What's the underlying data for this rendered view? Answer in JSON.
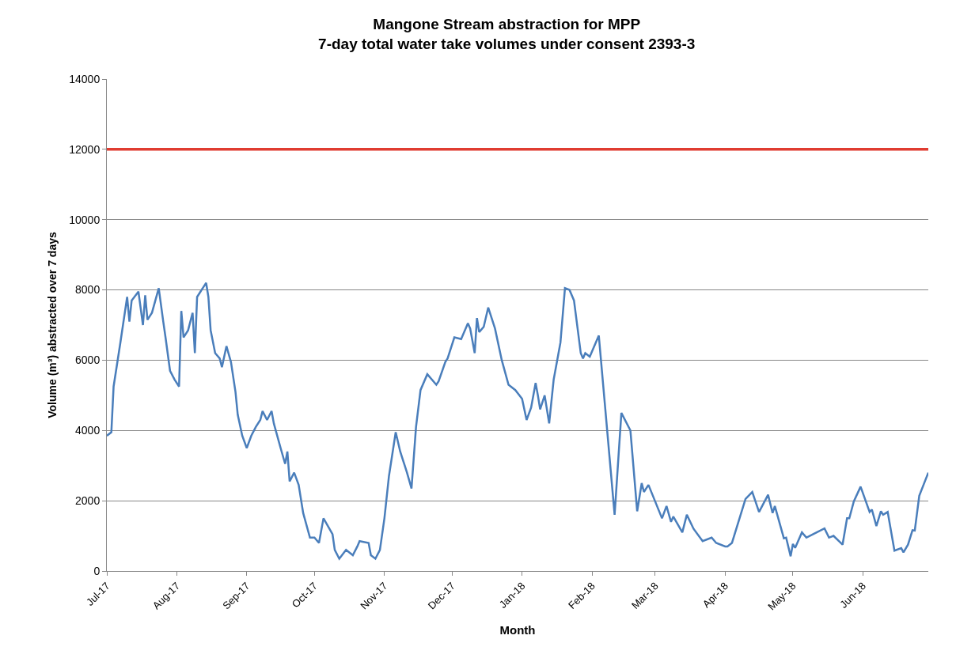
{
  "chart_data": {
    "type": "line",
    "title": "Mangone Stream abstraction for MPP",
    "subtitle": "7-day total water take volumes under consent 2393-3",
    "xlabel": "Month",
    "ylabel": "Volume (m³) abstracted over 7 days",
    "x": [
      "2017-07-01",
      "2017-07-03",
      "2017-07-04",
      "2017-07-07",
      "2017-07-10",
      "2017-07-11",
      "2017-07-12",
      "2017-07-15",
      "2017-07-17",
      "2017-07-18",
      "2017-07-19",
      "2017-07-21",
      "2017-07-24",
      "2017-07-26",
      "2017-07-27",
      "2017-07-29",
      "2017-07-31",
      "2017-08-02",
      "2017-08-03",
      "2017-08-04",
      "2017-08-06",
      "2017-08-08",
      "2017-08-09",
      "2017-08-10",
      "2017-08-11",
      "2017-08-13",
      "2017-08-14",
      "2017-08-15",
      "2017-08-16",
      "2017-08-18",
      "2017-08-20",
      "2017-08-21",
      "2017-08-23",
      "2017-08-25",
      "2017-08-27",
      "2017-08-28",
      "2017-08-30",
      "2017-09-01",
      "2017-09-03",
      "2017-09-05",
      "2017-09-07",
      "2017-09-08",
      "2017-09-10",
      "2017-09-12",
      "2017-09-13",
      "2017-09-16",
      "2017-09-18",
      "2017-09-19",
      "2017-09-20",
      "2017-09-22",
      "2017-09-24",
      "2017-09-26",
      "2017-09-29",
      "2017-10-01",
      "2017-10-03",
      "2017-10-05",
      "2017-10-09",
      "2017-10-10",
      "2017-10-12",
      "2017-10-15",
      "2017-10-18",
      "2017-10-20",
      "2017-10-21",
      "2017-10-25",
      "2017-10-26",
      "2017-10-28",
      "2017-10-30",
      "2017-11-01",
      "2017-11-03",
      "2017-11-06",
      "2017-11-08",
      "2017-11-10",
      "2017-11-11",
      "2017-11-13",
      "2017-11-15",
      "2017-11-17",
      "2017-11-20",
      "2017-11-24",
      "2017-11-25",
      "2017-11-28",
      "2017-11-29",
      "2017-12-02",
      "2017-12-05",
      "2017-12-08",
      "2017-12-09",
      "2017-12-11",
      "2017-12-12",
      "2017-12-13",
      "2017-12-15",
      "2017-12-17",
      "2017-12-20",
      "2017-12-23",
      "2017-12-26",
      "2017-12-29",
      "2018-01-01",
      "2018-01-03",
      "2018-01-05",
      "2018-01-07",
      "2018-01-08",
      "2018-01-09",
      "2018-01-11",
      "2018-01-13",
      "2018-01-15",
      "2018-01-17",
      "2018-01-18",
      "2018-01-20",
      "2018-01-22",
      "2018-01-24",
      "2018-01-27",
      "2018-01-28",
      "2018-01-29",
      "2018-01-31",
      "2018-02-04",
      "2018-02-11",
      "2018-02-14",
      "2018-02-18",
      "2018-02-21",
      "2018-02-23",
      "2018-02-24",
      "2018-02-26",
      "2018-03-04",
      "2018-03-06",
      "2018-03-08",
      "2018-03-09",
      "2018-03-13",
      "2018-03-15",
      "2018-03-18",
      "2018-03-22",
      "2018-03-26",
      "2018-03-28",
      "2018-04-01",
      "2018-04-02",
      "2018-04-04",
      "2018-04-10",
      "2018-04-13",
      "2018-04-16",
      "2018-04-20",
      "2018-04-22",
      "2018-04-23",
      "2018-04-27",
      "2018-04-28",
      "2018-04-30",
      "2018-05-01",
      "2018-05-02",
      "2018-05-05",
      "2018-05-07",
      "2018-05-10",
      "2018-05-15",
      "2018-05-17",
      "2018-05-19",
      "2018-05-23",
      "2018-05-25",
      "2018-05-26",
      "2018-05-28",
      "2018-05-31",
      "2018-06-04",
      "2018-06-05",
      "2018-06-07",
      "2018-06-09",
      "2018-06-10",
      "2018-06-12",
      "2018-06-15",
      "2018-06-18",
      "2018-06-19",
      "2018-06-21",
      "2018-06-23",
      "2018-06-24",
      "2018-06-26",
      "2018-06-30"
    ],
    "series": [
      {
        "color": "#4a7ebb",
        "values": [
          3850,
          3950,
          5250,
          6500,
          7800,
          7100,
          7700,
          7950,
          7000,
          7850,
          7150,
          7350,
          8050,
          7100,
          6650,
          5700,
          5450,
          5250,
          7400,
          6650,
          6850,
          7350,
          6200,
          7800,
          7900,
          8100,
          8200,
          7800,
          6850,
          6200,
          6050,
          5800,
          6400,
          5950,
          5100,
          4450,
          3850,
          3500,
          3850,
          4100,
          4300,
          4550,
          4300,
          4550,
          4200,
          3500,
          3050,
          3400,
          2550,
          2800,
          2450,
          1650,
          950,
          950,
          800,
          1500,
          1050,
          600,
          350,
          600,
          450,
          700,
          850,
          800,
          450,
          350,
          600,
          1500,
          2700,
          3950,
          3400,
          3000,
          2800,
          2350,
          4100,
          5150,
          5600,
          5300,
          5400,
          5950,
          6050,
          6650,
          6600,
          7050,
          6900,
          6200,
          7200,
          6800,
          6950,
          7500,
          6900,
          6000,
          5300,
          5150,
          4900,
          4300,
          4650,
          5350,
          5000,
          4600,
          5000,
          4200,
          5450,
          6150,
          6500,
          8050,
          8000,
          7700,
          6200,
          6050,
          6200,
          6100,
          6700,
          1600,
          4500,
          4000,
          1700,
          2500,
          2250,
          2450,
          1500,
          1850,
          1400,
          1550,
          1100,
          1600,
          1200,
          850,
          950,
          800,
          700,
          700,
          800,
          2050,
          2250,
          1680,
          2170,
          1650,
          1850,
          930,
          950,
          420,
          770,
          660,
          1100,
          950,
          1050,
          1210,
          950,
          1000,
          750,
          1500,
          1500,
          1980,
          2400,
          1680,
          1750,
          1280,
          1700,
          1600,
          1680,
          580,
          650,
          530,
          750,
          1160,
          1150,
          2140,
          2800
        ]
      }
    ],
    "xlim": [
      "2017-07-01",
      "2018-06-30"
    ],
    "xticks": [
      {
        "value": "2017-07-01",
        "label": "Jul-17"
      },
      {
        "value": "2017-08-01",
        "label": "Aug-17"
      },
      {
        "value": "2017-09-01",
        "label": "Sep-17"
      },
      {
        "value": "2017-10-01",
        "label": "Oct-17"
      },
      {
        "value": "2017-11-01",
        "label": "Nov-17"
      },
      {
        "value": "2017-12-01",
        "label": "Dec-17"
      },
      {
        "value": "2018-01-01",
        "label": "Jan-18"
      },
      {
        "value": "2018-02-01",
        "label": "Feb-18"
      },
      {
        "value": "2018-03-01",
        "label": "Mar-18"
      },
      {
        "value": "2018-04-01",
        "label": "Apr-18"
      },
      {
        "value": "2018-05-01",
        "label": "May-18"
      },
      {
        "value": "2018-06-01",
        "label": "Jun-18"
      }
    ],
    "ylim": [
      0,
      14000
    ],
    "yticks": [
      0,
      2000,
      4000,
      6000,
      8000,
      10000,
      12000,
      14000
    ],
    "ref_lines": [
      {
        "axis": "y",
        "value": 12000,
        "color": "#e03c31"
      }
    ],
    "grid": "y",
    "line_style": "solid"
  }
}
